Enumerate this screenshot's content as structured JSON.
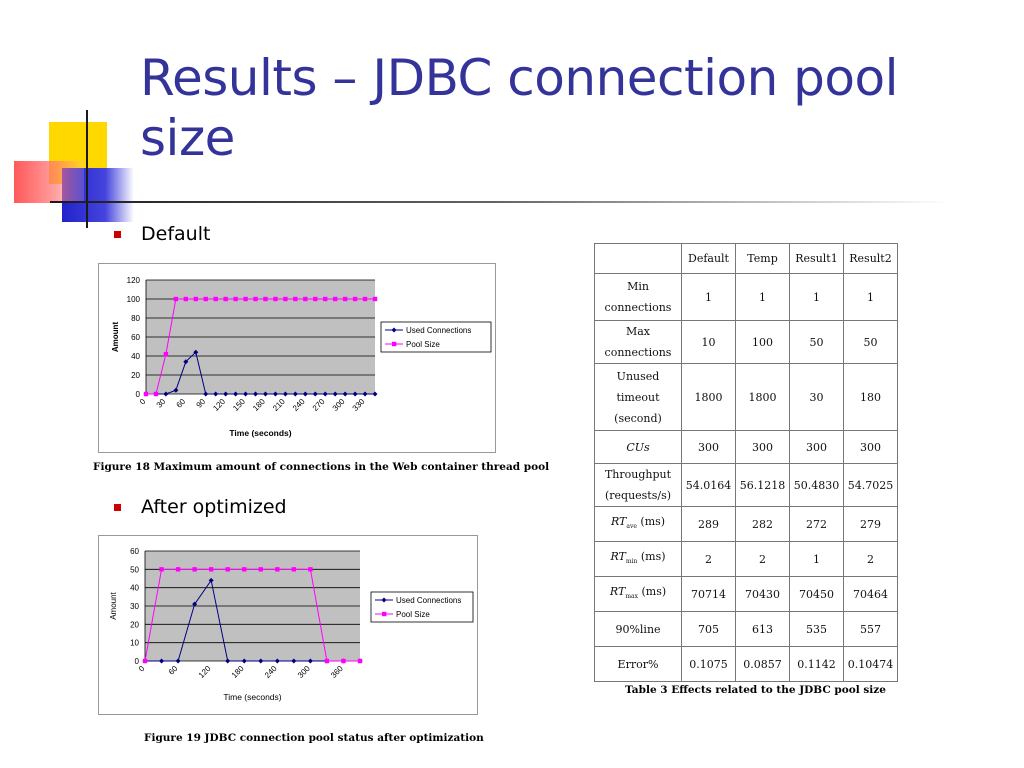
{
  "slide": {
    "title": "Results – JDBC connection pool size",
    "bullets": [
      "Default",
      "After optimized"
    ]
  },
  "chart_data": [
    {
      "type": "line",
      "caption": "Figure 18 Maximum amount of connections in the Web container thread pool",
      "xlabel": "Time (seconds)",
      "ylabel": "Amount",
      "ylim": [
        0,
        120
      ],
      "yticks": [
        "0",
        "20",
        "40",
        "60",
        "80",
        "100",
        "120"
      ],
      "xticks": [
        "0",
        "30",
        "60",
        "90",
        "120",
        "150",
        "180",
        "210",
        "240",
        "270",
        "300",
        "330"
      ],
      "x": [
        0,
        15,
        30,
        45,
        60,
        75,
        90,
        105,
        120,
        135,
        150,
        165,
        180,
        195,
        210,
        225,
        240,
        255,
        270,
        285,
        300,
        315,
        330,
        345
      ],
      "series": [
        {
          "name": "Used Connections",
          "color": "#000080",
          "values": [
            0,
            0,
            0,
            4,
            34,
            44,
            0,
            0,
            0,
            0,
            0,
            0,
            0,
            0,
            0,
            0,
            0,
            0,
            0,
            0,
            0,
            0,
            0,
            0
          ]
        },
        {
          "name": "Pool Size",
          "color": "#ff00ff",
          "values": [
            0,
            0,
            42,
            100,
            100,
            100,
            100,
            100,
            100,
            100,
            100,
            100,
            100,
            100,
            100,
            100,
            100,
            100,
            100,
            100,
            100,
            100,
            100,
            100
          ]
        }
      ],
      "legend": "right",
      "grid": true
    },
    {
      "type": "line",
      "caption": "Figure 19 JDBC connection pool status after optimization",
      "xlabel": "Time (seconds)",
      "ylabel": "Amount",
      "ylim": [
        0,
        60
      ],
      "yticks": [
        "0",
        "10",
        "20",
        "30",
        "40",
        "50",
        "60"
      ],
      "xticks": [
        "0",
        "60",
        "120",
        "180",
        "240",
        "300",
        "360"
      ],
      "x": [
        0,
        30,
        60,
        90,
        120,
        150,
        180,
        210,
        240,
        270,
        300,
        330,
        360,
        390
      ],
      "series": [
        {
          "name": "Used Connections",
          "color": "#000080",
          "values": [
            0,
            0,
            0,
            31,
            44,
            0,
            0,
            0,
            0,
            0,
            0,
            0,
            0,
            0
          ]
        },
        {
          "name": "Pool Size",
          "color": "#ff00ff",
          "values": [
            0,
            50,
            50,
            50,
            50,
            50,
            50,
            50,
            50,
            50,
            50,
            0,
            0,
            0
          ]
        }
      ],
      "legend": "right",
      "grid": true
    }
  ],
  "table": {
    "caption": "Table 3 Effects related to the JDBC pool size",
    "headers": [
      "",
      "Default",
      "Temp",
      "Result1",
      "Result2"
    ],
    "rows": [
      {
        "label_lines": [
          "Min",
          "connections"
        ],
        "values": [
          "1",
          "1",
          "1",
          "1"
        ]
      },
      {
        "label_lines": [
          "Max",
          "connections"
        ],
        "values": [
          "10",
          "100",
          "50",
          "50"
        ]
      },
      {
        "label_lines": [
          "Unused",
          "timeout",
          "(second)"
        ],
        "values": [
          "1800",
          "1800",
          "30",
          "180"
        ]
      },
      {
        "label_lines": [
          "CUs"
        ],
        "values": [
          "300",
          "300",
          "300",
          "300"
        ]
      },
      {
        "label_lines": [
          "Throughput",
          "(requests/s)"
        ],
        "values": [
          "54.0164",
          "56.1218",
          "50.4830",
          "54.7025"
        ]
      },
      {
        "label_main": "RT",
        "label_sub": "ave",
        "label_tail": " (ms)",
        "values": [
          "289",
          "282",
          "272",
          "279"
        ]
      },
      {
        "label_main": "RT",
        "label_sub": "min",
        "label_tail": " (ms)",
        "values": [
          "2",
          "2",
          "1",
          "2"
        ]
      },
      {
        "label_main": "RT",
        "label_sub": "max",
        "label_tail": " (ms)",
        "values": [
          "70714",
          "70430",
          "70450",
          "70464"
        ]
      },
      {
        "label_lines": [
          "90%line"
        ],
        "values": [
          "705",
          "613",
          "535",
          "557"
        ]
      },
      {
        "label_lines": [
          "Error%"
        ],
        "values": [
          "0.1075",
          "0.0857",
          "0.1142",
          "0.10474"
        ]
      }
    ]
  }
}
